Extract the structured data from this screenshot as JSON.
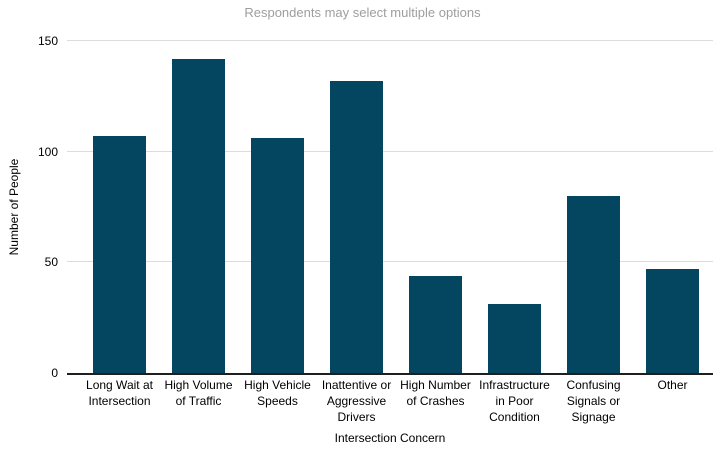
{
  "chart_data": {
    "type": "bar",
    "title": "Respondents may select multiple options",
    "categories": [
      "Long Wait at\nIntersection",
      "High Volume\nof Traffic",
      "High Vehicle\nSpeeds",
      "Inattentive or\nAggressive\nDrivers",
      "High Number\nof Crashes",
      "Infrastructure\nin Poor\nCondition",
      "Confusing\nSignals or\nSignage",
      "Other"
    ],
    "values": [
      107,
      142,
      106,
      132,
      44,
      31,
      80,
      47
    ],
    "xlabel": "Intersection Concern",
    "ylabel": "Number of People",
    "yticks": [
      0,
      50,
      100,
      150
    ],
    "ylim": [
      0,
      150
    ],
    "grid": true,
    "legend": "none",
    "bar_color": "#04465f",
    "title_color": "#9e9e9e",
    "gridline_color": "#dcdcdc",
    "axis_line_color": "#1f1f1f",
    "text_color": "#000000"
  }
}
